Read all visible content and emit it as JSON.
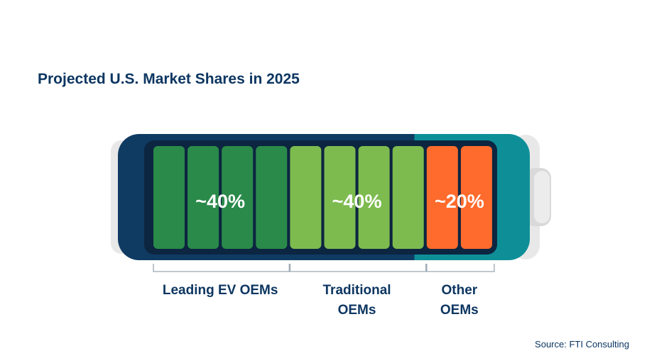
{
  "chart_data": {
    "type": "bar",
    "title": "Projected U.S. Market Shares in 2025",
    "subtitle": "",
    "xlabel": "",
    "ylabel": "",
    "categories": [
      "Leading EV OEMs",
      "Traditional OEMs",
      "Other OEMs"
    ],
    "label_lines": [
      [
        "Leading EV OEMs"
      ],
      [
        "Traditional",
        "OEMs"
      ],
      [
        "Other",
        "OEMs"
      ]
    ],
    "values": [
      40,
      40,
      20
    ],
    "value_labels": [
      "~40%",
      "~40%",
      "~20%"
    ],
    "cells_per_category": [
      4,
      4,
      2
    ],
    "source": "Source: FTI Consulting"
  },
  "colors": {
    "title": "#0d3661",
    "text": "#0d3661",
    "leading": "#2a8a4a",
    "traditional": "#7dbb4f",
    "other": "#ff6b2c",
    "shell_dark": "#0f3b63",
    "shell_teal": "#0e8f98",
    "inner": "#0c2540",
    "cap_light": "#e8e8e8",
    "cap_mid": "#d2d2d2",
    "bracket": "#9aa6b2",
    "label_white": "#ffffff"
  },
  "icons": {
    "battery": "battery-icon"
  }
}
